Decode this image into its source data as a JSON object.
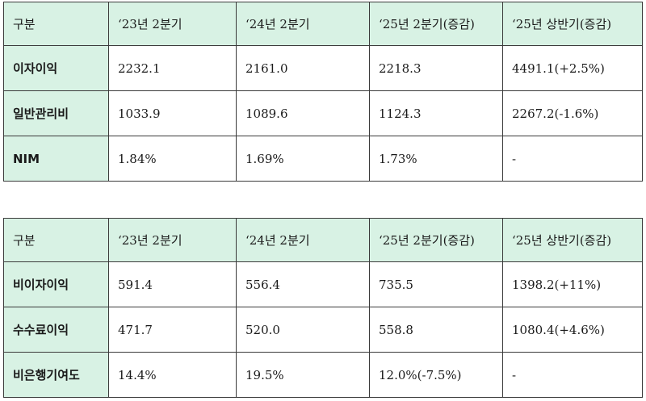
{
  "colors": {
    "header_bg": "#d8f2e4",
    "border": "#3a3a3a"
  },
  "table1": {
    "headers": [
      "구분",
      "‘23년 2분기",
      "‘24년 2분기",
      "‘25년 2분기(증감)",
      "‘25년 상반기(증감)"
    ],
    "rows": [
      {
        "label": "이자이익",
        "values": [
          "2232.1",
          "2161.0",
          "2218.3",
          "4491.1(+2.5%)"
        ]
      },
      {
        "label": "일반관리비",
        "values": [
          "1033.9",
          "1089.6",
          "1124.3",
          "2267.2(-1.6%)"
        ]
      },
      {
        "label": "NIM",
        "values": [
          "1.84%",
          "1.69%",
          "1.73%",
          "-"
        ]
      }
    ]
  },
  "table2": {
    "headers": [
      "구분",
      "‘23년 2분기",
      "‘24년 2분기",
      "‘25년 2분기(증감)",
      "‘25년 상반기(증감)"
    ],
    "rows": [
      {
        "label": "비이자이익",
        "values": [
          "591.4",
          "556.4",
          "735.5",
          "1398.2(+11%)"
        ]
      },
      {
        "label": "수수료이익",
        "values": [
          "471.7",
          "520.0",
          "558.8",
          "1080.4(+4.6%)"
        ]
      },
      {
        "label": "비은행기여도",
        "values": [
          "14.4%",
          "19.5%",
          "12.0%(-7.5%)",
          "-"
        ]
      }
    ]
  }
}
